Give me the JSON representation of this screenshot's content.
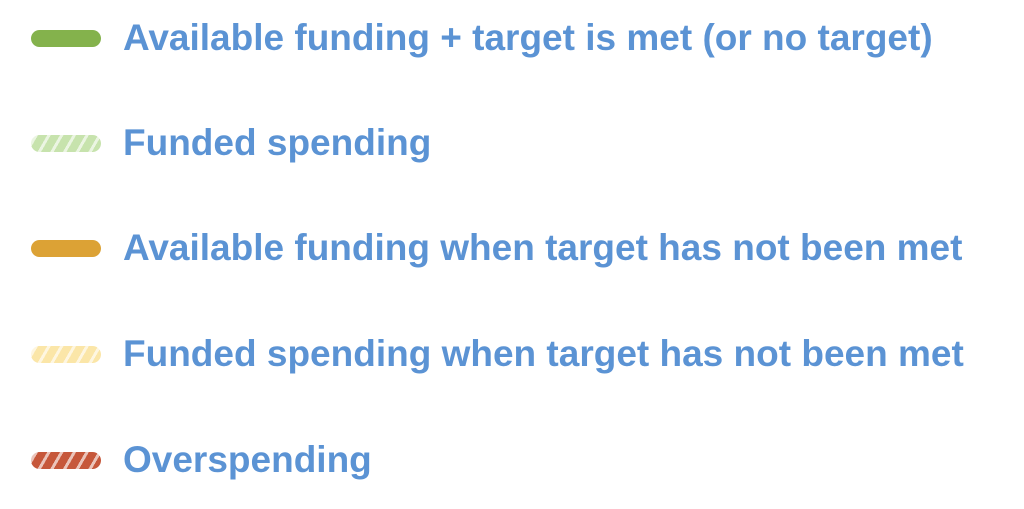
{
  "legend": {
    "items": [
      {
        "label": "Available funding + target is met (or no target)",
        "color": "#84b24c",
        "striped": false
      },
      {
        "label": "Funded spending",
        "color": "#c7e3ad",
        "striped": true
      },
      {
        "label": "Available funding when target has not been met",
        "color": "#dca235",
        "striped": false
      },
      {
        "label": "Funded spending when target has not been met",
        "color": "#fbe6a8",
        "striped": true
      },
      {
        "label": "Overspending",
        "color": "#c6573a",
        "striped": true
      }
    ]
  }
}
